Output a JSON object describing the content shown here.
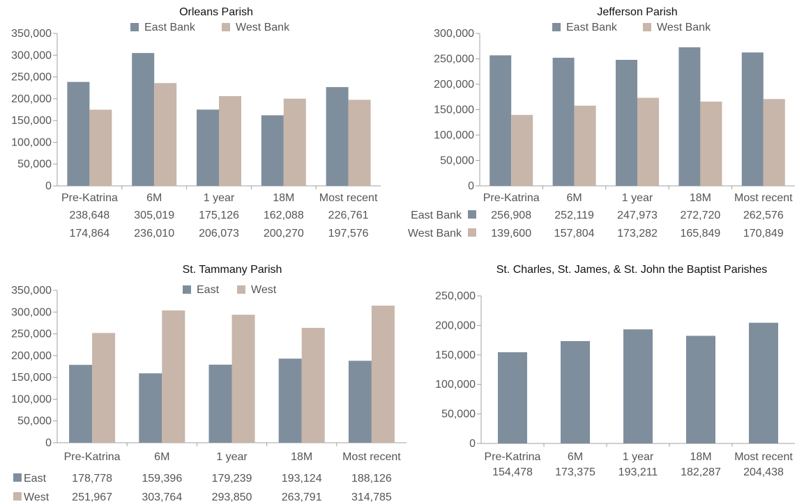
{
  "colors": {
    "east": "#7f8e9d",
    "west": "#c8b6aa",
    "axis": "#a0a0a0",
    "text": "#555555",
    "title": "#111111"
  },
  "chart_data": [
    {
      "type": "bar",
      "title": "Orleans Parish",
      "categories": [
        "Pre-Katrina",
        "6M",
        "1 year",
        "18M",
        "Most recent"
      ],
      "series": [
        {
          "name": "East Bank",
          "values": [
            238648,
            305019,
            175126,
            162088,
            226761
          ]
        },
        {
          "name": "West Bank",
          "values": [
            174864,
            236010,
            206073,
            200270,
            197576
          ]
        }
      ],
      "ylim": [
        0,
        350000
      ],
      "yticks": [
        "0",
        "50,000",
        "100,000",
        "150,000",
        "200,000",
        "250,000",
        "300,000",
        "350,000"
      ],
      "table_rows": [
        {
          "label": "",
          "values": [
            "238,648",
            "305,019",
            "175,126",
            "162,088",
            "226,761"
          ]
        },
        {
          "label": "",
          "values": [
            "174,864",
            "236,010",
            "206,073",
            "200,270",
            "197,576"
          ]
        }
      ],
      "legend": "top-center"
    },
    {
      "type": "bar",
      "title": "Jefferson Parish",
      "categories": [
        "Pre-Katrina",
        "6M",
        "1 year",
        "18M",
        "Most recent"
      ],
      "series": [
        {
          "name": "East Bank",
          "values": [
            256908,
            252119,
            247973,
            272720,
            262576
          ]
        },
        {
          "name": "West Bank",
          "values": [
            139600,
            157804,
            173282,
            165849,
            170849
          ]
        }
      ],
      "ylim": [
        0,
        300000
      ],
      "yticks": [
        "0",
        "50,000",
        "100,000",
        "150,000",
        "200,000",
        "250,000",
        "300,000"
      ],
      "table_rows": [
        {
          "label": "East Bank",
          "values": [
            "256,908",
            "252,119",
            "247,973",
            "272,720",
            "262,576"
          ]
        },
        {
          "label": "West Bank",
          "values": [
            "139,600",
            "157,804",
            "173,282",
            "165,849",
            "170,849"
          ]
        }
      ],
      "legend": "top-center"
    },
    {
      "type": "bar",
      "title": "St. Tammany Parish",
      "categories": [
        "Pre-Katrina",
        "6M",
        "1 year",
        "18M",
        "Most recent"
      ],
      "series": [
        {
          "name": "East",
          "values": [
            178778,
            159396,
            179239,
            193124,
            188126
          ]
        },
        {
          "name": "West",
          "values": [
            251967,
            303764,
            293850,
            263791,
            314785
          ]
        }
      ],
      "ylim": [
        0,
        350000
      ],
      "yticks": [
        "0",
        "50,000",
        "100,000",
        "150,000",
        "200,000",
        "250,000",
        "300,000",
        "350,000"
      ],
      "table_rows": [
        {
          "label": "East",
          "values": [
            "178,778",
            "159,396",
            "179,239",
            "193,124",
            "188,126"
          ]
        },
        {
          "label": "West",
          "values": [
            "251,967",
            "303,764",
            "293,850",
            "263,791",
            "314,785"
          ]
        }
      ],
      "legend": "top-center"
    },
    {
      "type": "bar",
      "title": "St. Charles, St. James, & St. John the Baptist Parishes",
      "categories": [
        "Pre-Katrina",
        "6M",
        "1 year",
        "18M",
        "Most recent"
      ],
      "series": [
        {
          "name": "",
          "values": [
            154478,
            173375,
            193211,
            182287,
            204438
          ]
        }
      ],
      "ylim": [
        0,
        250000
      ],
      "yticks": [
        "0",
        "50,000",
        "100,000",
        "150,000",
        "200,000",
        "250,000"
      ],
      "table_rows": [
        {
          "label": "",
          "values": [
            "154,478",
            "173,375",
            "193,211",
            "182,287",
            "204,438"
          ]
        }
      ],
      "legend": "none"
    }
  ]
}
